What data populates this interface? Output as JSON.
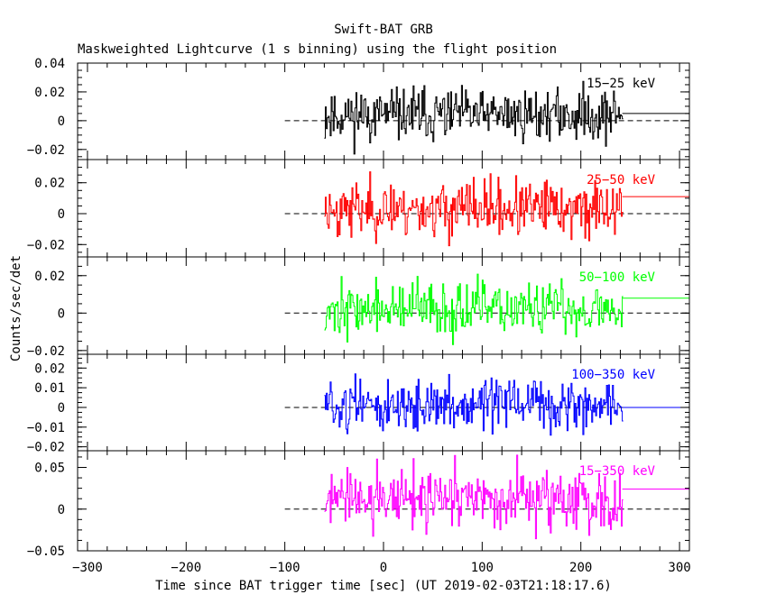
{
  "chart_data": {
    "type": "line",
    "title": "Swift-BAT GRB",
    "subtitle": "Maskweighted Lightcurve (1 s binning) using the flight position",
    "xlabel": "Time since BAT trigger time [sec] (UT 2019-02-03T21:18:17.6)",
    "ylabel": "Counts/sec/det",
    "xlim": [
      -310,
      310
    ],
    "xticks": [
      -300,
      -200,
      -100,
      0,
      100,
      200,
      300
    ],
    "xtick_labels": [
      "−300",
      "−200",
      "−100",
      "0",
      "100",
      "200",
      "300"
    ],
    "data_range": [
      -60,
      242
    ],
    "reference_line": {
      "y": 0,
      "x": [
        -100,
        310
      ],
      "style": "dashed"
    },
    "panels": [
      {
        "name": "15−25 keV",
        "color": "#000000",
        "ylim": [
          -0.027,
          0.04
        ],
        "yticks": [
          -0.02,
          0,
          0.02,
          0.04
        ],
        "ytick_labels": [
          "−0.02",
          "0",
          "0.02",
          "0.04"
        ],
        "mean": 0.004,
        "noise": 0.009,
        "tail_value": 0.005,
        "seed": 11
      },
      {
        "name": "25−50 keV",
        "color": "#ff0000",
        "ylim": [
          -0.028,
          0.035
        ],
        "yticks": [
          -0.02,
          0,
          0.02
        ],
        "ytick_labels": [
          "−0.02",
          "0",
          "0.02"
        ],
        "mean": 0.003,
        "noise": 0.009,
        "tail_value": 0.011,
        "seed": 23
      },
      {
        "name": "50−100 keV",
        "color": "#00ff00",
        "ylim": [
          -0.022,
          0.03
        ],
        "yticks": [
          -0.02,
          0,
          0.02
        ],
        "ytick_labels": [
          "−0.02",
          "0",
          "0.02"
        ],
        "mean": 0.002,
        "noise": 0.007,
        "tail_value": 0.008,
        "seed": 37
      },
      {
        "name": "100−350 keV",
        "color": "#0000ff",
        "ylim": [
          -0.022,
          0.027
        ],
        "yticks": [
          -0.02,
          -0.01,
          0,
          0.01,
          0.02
        ],
        "ytick_labels": [
          "−0.02",
          "−0.01",
          "0",
          "0.01",
          "0.02"
        ],
        "mean": 0.001,
        "noise": 0.0065,
        "tail_value": 0.0,
        "seed": 51
      },
      {
        "name": "15−350 keV",
        "color": "#ff00ff",
        "ylim": [
          -0.05,
          0.07
        ],
        "yticks": [
          -0.05,
          0,
          0.05
        ],
        "ytick_labels": [
          "−0.05",
          "0",
          "0.05"
        ],
        "mean": 0.01,
        "noise": 0.018,
        "tail_value": 0.024,
        "seed": 77
      }
    ]
  }
}
